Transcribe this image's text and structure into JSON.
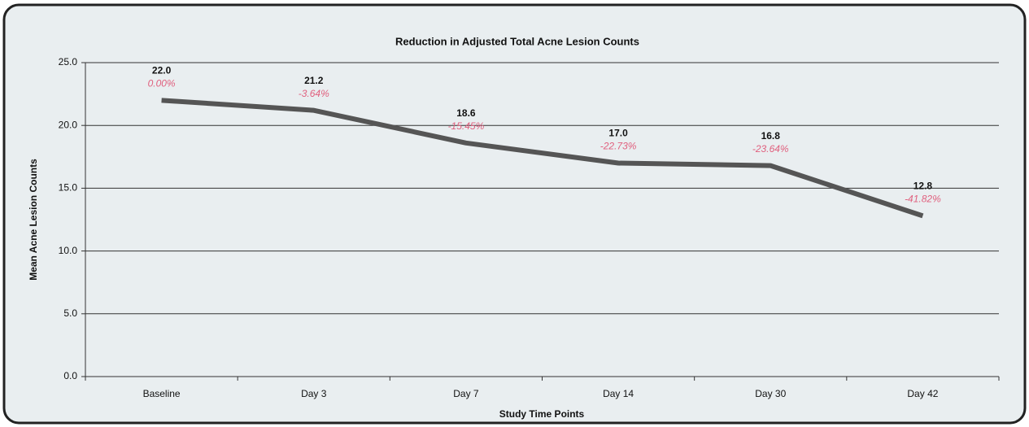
{
  "chart_data": {
    "type": "line",
    "title": "Reduction in Adjusted Total Acne Lesion Counts",
    "x_label": "Study Time Points",
    "y_label": "Mean Acne Lesion Counts",
    "categories": [
      "Baseline",
      "Day 3",
      "Day 7",
      "Day 14",
      "Day 30",
      "Day 42"
    ],
    "values": [
      22.0,
      21.2,
      18.6,
      17.0,
      16.8,
      12.8
    ],
    "value_labels": [
      "22.0",
      "21.2",
      "18.6",
      "17.0",
      "16.8",
      "12.8"
    ],
    "annotations": [
      "0.00%",
      "-3.64%",
      "-15.45%",
      "-22.73%",
      "-23.64%",
      "-41.82%"
    ],
    "color": "#555555",
    "annotation_color": "#e0607e",
    "ylim": [
      0,
      25
    ],
    "yticks": [
      {
        "value": 0,
        "label": "0.0"
      },
      {
        "value": 5,
        "label": "5.0"
      },
      {
        "value": 10,
        "label": "10.0"
      },
      {
        "value": 15,
        "label": "15.0"
      },
      {
        "value": 20,
        "label": "20.0"
      },
      {
        "value": 25,
        "label": "25.0"
      }
    ],
    "grid": true
  }
}
